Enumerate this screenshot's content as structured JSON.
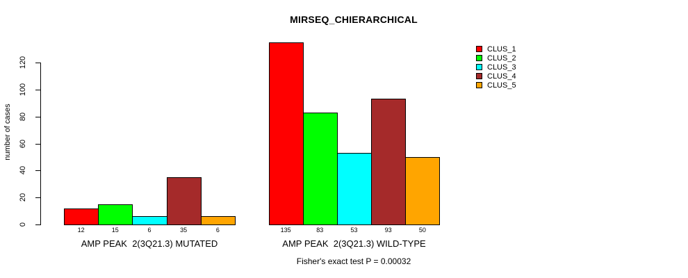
{
  "chart": {
    "title": "MIRSEQ_CHIERARCHICAL",
    "ylabel": "number of cases",
    "annotation": "Fisher's exact test P = 0.00032"
  },
  "chart_data": {
    "type": "bar",
    "title": "MIRSEQ_CHIERARCHICAL",
    "xlabel": "",
    "ylabel": "number of cases",
    "ylim": [
      0,
      140
    ],
    "yticks": [
      0,
      20,
      40,
      60,
      80,
      100,
      120
    ],
    "grid": false,
    "legend_position": "right",
    "series": [
      {
        "name": "CLUS_1",
        "color": "#ff0000",
        "values": [
          12,
          135
        ]
      },
      {
        "name": "CLUS_2",
        "color": "#00ff00",
        "values": [
          15,
          83
        ]
      },
      {
        "name": "CLUS_3",
        "color": "#00ffff",
        "values": [
          6,
          53
        ]
      },
      {
        "name": "CLUS_4",
        "color": "#a52a2a",
        "values": [
          35,
          93
        ]
      },
      {
        "name": "CLUS_5",
        "color": "#ffa500",
        "values": [
          6,
          50
        ]
      }
    ],
    "groups": [
      {
        "label": "AMP PEAK  2(3Q21.3) MUTATED",
        "values": [
          12,
          15,
          6,
          35,
          6
        ]
      },
      {
        "label": "AMP PEAK  2(3Q21.3) WILD-TYPE",
        "values": [
          135,
          83,
          53,
          93,
          50
        ]
      }
    ],
    "bar_value_labels_shown": true,
    "annotation": "Fisher's exact test P = 0.00032",
    "axis_color": "#000000",
    "background_color": "#ffffff"
  }
}
